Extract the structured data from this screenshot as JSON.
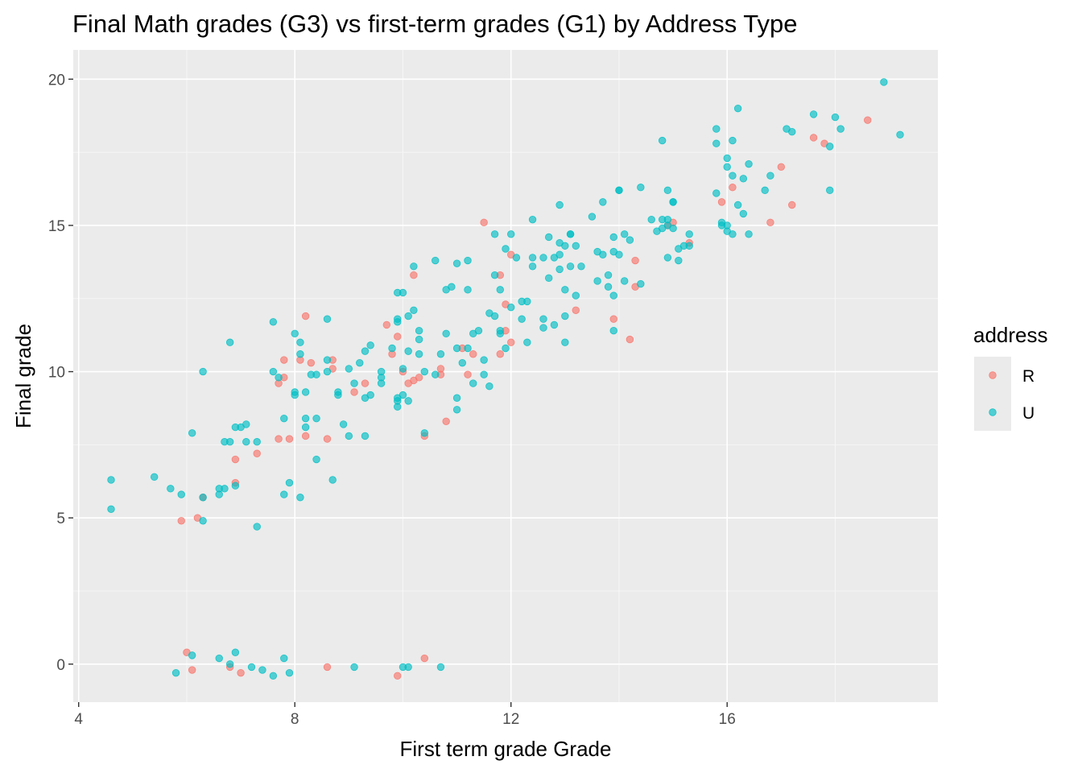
{
  "chart_data": {
    "type": "scatter",
    "title": "Final Math grades (G3) vs first-term grades (G1) by Address Type",
    "xlabel": "First term grade Grade",
    "ylabel": "Final grade",
    "xlim": [
      3.9,
      19.9
    ],
    "ylim": [
      -1.3,
      21.0
    ],
    "x_ticks": [
      4,
      8,
      12,
      16
    ],
    "y_ticks": [
      0,
      5,
      10,
      15,
      20
    ],
    "grid": true,
    "legend": {
      "title": "address",
      "placement": "right"
    },
    "series": [
      {
        "name": "R",
        "color": "#F8766D",
        "points": [
          [
            5.9,
            4.9
          ],
          [
            6.0,
            0.4
          ],
          [
            6.1,
            -0.2
          ],
          [
            6.2,
            5.0
          ],
          [
            6.3,
            5.7
          ],
          [
            6.8,
            -0.1
          ],
          [
            6.9,
            7.0
          ],
          [
            6.9,
            6.2
          ],
          [
            7.0,
            -0.3
          ],
          [
            7.3,
            7.2
          ],
          [
            7.7,
            9.6
          ],
          [
            7.7,
            7.7
          ],
          [
            7.8,
            10.4
          ],
          [
            7.8,
            9.8
          ],
          [
            7.9,
            7.7
          ],
          [
            8.1,
            10.4
          ],
          [
            8.2,
            7.8
          ],
          [
            8.2,
            11.9
          ],
          [
            8.3,
            10.3
          ],
          [
            8.6,
            7.7
          ],
          [
            8.6,
            -0.1
          ],
          [
            8.7,
            10.1
          ],
          [
            8.7,
            10.4
          ],
          [
            9.1,
            9.3
          ],
          [
            9.3,
            9.6
          ],
          [
            9.7,
            11.6
          ],
          [
            9.8,
            10.6
          ],
          [
            9.9,
            -0.4
          ],
          [
            9.9,
            11.2
          ],
          [
            10.0,
            10.0
          ],
          [
            10.1,
            9.6
          ],
          [
            10.2,
            13.3
          ],
          [
            10.2,
            9.7
          ],
          [
            10.3,
            9.8
          ],
          [
            10.4,
            7.8
          ],
          [
            10.4,
            0.2
          ],
          [
            10.7,
            9.9
          ],
          [
            10.7,
            10.1
          ],
          [
            10.8,
            8.3
          ],
          [
            11.1,
            10.8
          ],
          [
            11.3,
            10.6
          ],
          [
            11.2,
            9.9
          ],
          [
            11.5,
            15.1
          ],
          [
            11.8,
            13.3
          ],
          [
            11.8,
            10.6
          ],
          [
            11.9,
            11.4
          ],
          [
            11.9,
            12.3
          ],
          [
            12.0,
            14.0
          ],
          [
            12.0,
            11.0
          ],
          [
            13.2,
            12.1
          ],
          [
            13.9,
            11.8
          ],
          [
            14.3,
            12.9
          ],
          [
            14.3,
            13.8
          ],
          [
            14.2,
            11.1
          ],
          [
            14.9,
            15.0
          ],
          [
            15.0,
            15.1
          ],
          [
            15.3,
            14.4
          ],
          [
            15.9,
            15.8
          ],
          [
            16.1,
            16.3
          ],
          [
            16.8,
            15.1
          ],
          [
            17.0,
            17.0
          ],
          [
            17.2,
            15.7
          ],
          [
            17.6,
            18.0
          ],
          [
            17.8,
            17.8
          ],
          [
            18.6,
            18.6
          ]
        ]
      },
      {
        "name": "U",
        "color": "#00BFC4",
        "points": [
          [
            4.6,
            6.3
          ],
          [
            4.6,
            5.3
          ],
          [
            5.4,
            6.4
          ],
          [
            5.7,
            6.0
          ],
          [
            5.8,
            -0.3
          ],
          [
            5.9,
            5.8
          ],
          [
            6.1,
            7.9
          ],
          [
            6.1,
            0.3
          ],
          [
            6.3,
            5.7
          ],
          [
            6.3,
            4.9
          ],
          [
            6.3,
            10.0
          ],
          [
            6.6,
            5.8
          ],
          [
            6.6,
            6.0
          ],
          [
            6.6,
            0.2
          ],
          [
            6.7,
            6.0
          ],
          [
            6.7,
            7.6
          ],
          [
            6.8,
            7.6
          ],
          [
            6.8,
            0.0
          ],
          [
            6.8,
            11.0
          ],
          [
            6.9,
            0.4
          ],
          [
            6.9,
            8.1
          ],
          [
            6.9,
            6.1
          ],
          [
            7.0,
            8.1
          ],
          [
            7.1,
            7.6
          ],
          [
            7.1,
            8.2
          ],
          [
            7.2,
            -0.1
          ],
          [
            7.3,
            7.6
          ],
          [
            7.3,
            4.7
          ],
          [
            7.4,
            -0.2
          ],
          [
            7.6,
            11.7
          ],
          [
            7.6,
            -0.4
          ],
          [
            7.6,
            10.0
          ],
          [
            7.7,
            9.8
          ],
          [
            7.8,
            8.4
          ],
          [
            7.8,
            5.8
          ],
          [
            7.8,
            0.2
          ],
          [
            7.9,
            6.2
          ],
          [
            7.9,
            -0.3
          ],
          [
            8.0,
            11.3
          ],
          [
            8.0,
            9.3
          ],
          [
            8.0,
            9.2
          ],
          [
            8.1,
            11.0
          ],
          [
            8.1,
            10.6
          ],
          [
            8.1,
            5.7
          ],
          [
            8.2,
            9.3
          ],
          [
            8.2,
            8.4
          ],
          [
            8.2,
            8.1
          ],
          [
            8.3,
            9.9
          ],
          [
            8.4,
            8.4
          ],
          [
            8.4,
            9.9
          ],
          [
            8.4,
            7.0
          ],
          [
            8.6,
            11.8
          ],
          [
            8.6,
            10.4
          ],
          [
            8.6,
            10.0
          ],
          [
            8.7,
            6.3
          ],
          [
            8.8,
            9.2
          ],
          [
            8.8,
            9.3
          ],
          [
            8.9,
            8.2
          ],
          [
            9.0,
            10.1
          ],
          [
            9.0,
            7.8
          ],
          [
            9.1,
            9.6
          ],
          [
            9.1,
            -0.1
          ],
          [
            9.2,
            10.3
          ],
          [
            9.3,
            10.7
          ],
          [
            9.3,
            9.1
          ],
          [
            9.3,
            7.8
          ],
          [
            9.4,
            10.9
          ],
          [
            9.4,
            9.2
          ],
          [
            9.6,
            9.6
          ],
          [
            9.6,
            10.0
          ],
          [
            9.6,
            9.8
          ],
          [
            9.8,
            10.8
          ],
          [
            9.9,
            11.7
          ],
          [
            9.9,
            8.8
          ],
          [
            9.9,
            12.7
          ],
          [
            9.9,
            11.8
          ],
          [
            9.9,
            9.0
          ],
          [
            9.9,
            9.1
          ],
          [
            10.0,
            12.7
          ],
          [
            10.0,
            10.1
          ],
          [
            10.0,
            -0.1
          ],
          [
            10.0,
            9.2
          ],
          [
            10.1,
            11.9
          ],
          [
            10.1,
            10.7
          ],
          [
            10.1,
            9.0
          ],
          [
            10.1,
            -0.1
          ],
          [
            10.2,
            12.1
          ],
          [
            10.2,
            13.6
          ],
          [
            10.3,
            11.4
          ],
          [
            10.3,
            10.6
          ],
          [
            10.3,
            11.1
          ],
          [
            10.4,
            7.9
          ],
          [
            10.4,
            10.0
          ],
          [
            10.6,
            13.8
          ],
          [
            10.6,
            9.9
          ],
          [
            10.7,
            10.6
          ],
          [
            10.7,
            -0.1
          ],
          [
            10.8,
            11.3
          ],
          [
            10.8,
            12.8
          ],
          [
            10.9,
            12.9
          ],
          [
            11.0,
            10.8
          ],
          [
            11.0,
            13.7
          ],
          [
            11.0,
            9.1
          ],
          [
            11.0,
            8.7
          ],
          [
            11.1,
            10.3
          ],
          [
            11.2,
            13.8
          ],
          [
            11.2,
            12.8
          ],
          [
            11.2,
            10.8
          ],
          [
            11.3,
            11.3
          ],
          [
            11.3,
            9.6
          ],
          [
            11.4,
            11.4
          ],
          [
            11.5,
            10.4
          ],
          [
            11.5,
            9.9
          ],
          [
            11.6,
            12.0
          ],
          [
            11.6,
            9.5
          ],
          [
            11.7,
            11.9
          ],
          [
            11.7,
            14.7
          ],
          [
            11.7,
            13.3
          ],
          [
            11.8,
            11.4
          ],
          [
            11.8,
            12.8
          ],
          [
            11.8,
            11.3
          ],
          [
            11.9,
            10.8
          ],
          [
            11.9,
            14.2
          ],
          [
            12.0,
            14.7
          ],
          [
            12.0,
            12.2
          ],
          [
            12.1,
            13.9
          ],
          [
            12.2,
            12.4
          ],
          [
            12.2,
            11.8
          ],
          [
            12.3,
            11.0
          ],
          [
            12.3,
            12.4
          ],
          [
            12.4,
            15.2
          ],
          [
            12.4,
            13.9
          ],
          [
            12.4,
            13.6
          ],
          [
            12.6,
            13.9
          ],
          [
            12.6,
            11.5
          ],
          [
            12.6,
            11.8
          ],
          [
            12.7,
            14.6
          ],
          [
            12.7,
            13.2
          ],
          [
            12.8,
            11.6
          ],
          [
            12.8,
            13.9
          ],
          [
            12.9,
            14.4
          ],
          [
            12.9,
            14.0
          ],
          [
            12.9,
            13.5
          ],
          [
            12.9,
            15.7
          ],
          [
            13.0,
            11.9
          ],
          [
            13.0,
            14.3
          ],
          [
            13.0,
            12.8
          ],
          [
            13.0,
            11.0
          ],
          [
            13.1,
            14.7
          ],
          [
            13.1,
            14.7
          ],
          [
            13.1,
            13.6
          ],
          [
            13.2,
            12.6
          ],
          [
            13.2,
            14.3
          ],
          [
            13.3,
            13.6
          ],
          [
            13.5,
            15.3
          ],
          [
            13.6,
            13.1
          ],
          [
            13.6,
            14.1
          ],
          [
            13.7,
            15.8
          ],
          [
            13.7,
            14.0
          ],
          [
            13.8,
            12.9
          ],
          [
            13.8,
            13.3
          ],
          [
            13.9,
            14.6
          ],
          [
            13.9,
            14.1
          ],
          [
            13.9,
            12.6
          ],
          [
            13.9,
            11.4
          ],
          [
            14.0,
            16.2
          ],
          [
            14.0,
            14.0
          ],
          [
            14.0,
            16.2
          ],
          [
            14.1,
            14.7
          ],
          [
            14.1,
            13.1
          ],
          [
            14.2,
            14.5
          ],
          [
            14.4,
            16.3
          ],
          [
            14.4,
            13.0
          ],
          [
            14.6,
            15.2
          ],
          [
            14.7,
            14.8
          ],
          [
            14.8,
            17.9
          ],
          [
            14.8,
            15.2
          ],
          [
            14.8,
            14.9
          ],
          [
            14.9,
            16.2
          ],
          [
            14.9,
            15.2
          ],
          [
            14.9,
            13.9
          ],
          [
            14.9,
            15.0
          ],
          [
            15.0,
            15.8
          ],
          [
            15.0,
            15.8
          ],
          [
            15.0,
            14.9
          ],
          [
            15.1,
            14.2
          ],
          [
            15.1,
            13.8
          ],
          [
            15.2,
            14.3
          ],
          [
            15.3,
            14.7
          ],
          [
            15.3,
            14.3
          ],
          [
            15.8,
            16.1
          ],
          [
            15.8,
            18.3
          ],
          [
            15.8,
            17.8
          ],
          [
            15.9,
            15.1
          ],
          [
            15.9,
            15.0
          ],
          [
            16.0,
            17.3
          ],
          [
            16.0,
            17.0
          ],
          [
            16.0,
            15.0
          ],
          [
            16.0,
            14.8
          ],
          [
            16.1,
            17.9
          ],
          [
            16.1,
            14.7
          ],
          [
            16.1,
            16.7
          ],
          [
            16.2,
            19.0
          ],
          [
            16.2,
            15.7
          ],
          [
            16.3,
            15.4
          ],
          [
            16.3,
            16.6
          ],
          [
            16.4,
            17.1
          ],
          [
            16.4,
            14.7
          ],
          [
            16.7,
            16.2
          ],
          [
            16.8,
            16.7
          ],
          [
            17.1,
            18.3
          ],
          [
            17.2,
            18.2
          ],
          [
            17.6,
            18.8
          ],
          [
            17.9,
            17.7
          ],
          [
            17.9,
            16.2
          ],
          [
            18.0,
            18.7
          ],
          [
            18.1,
            18.3
          ],
          [
            18.9,
            19.9
          ],
          [
            19.2,
            18.1
          ]
        ]
      }
    ]
  }
}
